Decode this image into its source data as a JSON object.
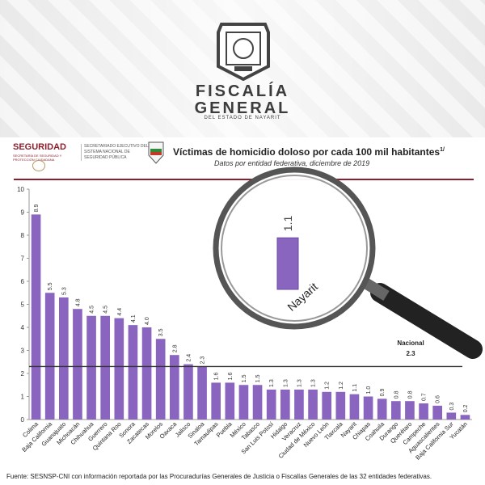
{
  "header": {
    "org_line1": "FISCALÍA",
    "org_line2": "GENERAL",
    "org_line3": "DEL ESTADO DE NAYARIT",
    "logo_left": "SEGURIDAD",
    "logo_left_sub": "SECRETARÍA DE SEGURIDAD Y PROTECCIÓN CIUDADANA",
    "logo_mid": "SECRETARIADO EJECUTIVO DEL SISTEMA NACIONAL DE SEGURIDAD PÚBLICA"
  },
  "chart_data": {
    "type": "bar",
    "title": "Víctimas de homicidio doloso por cada 100 mil habitantes",
    "title_note": "1/",
    "subtitle": "Datos por entidad federativa, diciembre de 2019",
    "categories": [
      "Colima",
      "Baja California",
      "Guanajuato",
      "Michoacán",
      "Chihuahua",
      "Guerrero",
      "Quintana Roo",
      "Sonora",
      "Zacatecas",
      "Morelos",
      "Oaxaca",
      "Jalisco",
      "Sinaloa",
      "Tamaulipas",
      "Puebla",
      "México",
      "Tabasco",
      "San Luis Potosí",
      "Hidalgo",
      "Veracruz",
      "Ciudad de México",
      "Nuevo León",
      "Tlaxcala",
      "Nayarit",
      "Chiapas",
      "Coahuila",
      "Durango",
      "Querétaro",
      "Campeche",
      "Aguascalientes",
      "Baja California Sur",
      "Yucatán"
    ],
    "values": [
      8.9,
      5.5,
      5.3,
      4.8,
      4.5,
      4.5,
      4.4,
      4.1,
      4.0,
      3.5,
      2.8,
      2.4,
      2.3,
      1.6,
      1.6,
      1.5,
      1.5,
      1.3,
      1.3,
      1.3,
      1.3,
      1.2,
      1.2,
      1.1,
      1.0,
      0.9,
      0.8,
      0.8,
      0.7,
      0.6,
      0.3,
      0.2
    ],
    "value_labels": [
      "8.9",
      "5.5",
      "5.3",
      "4.8",
      "4.5",
      "4.5",
      "4.4",
      "4.1",
      "4.0",
      "3.5",
      "2.8",
      "2.4",
      "2.3",
      "1.6",
      "1.6",
      "1.5",
      "1.5",
      "1.3",
      "1.3",
      "1.3",
      "1.3",
      "1.2",
      "1.2",
      "1.1",
      "1.0",
      "0.9",
      "0.8",
      "0.8",
      "0.7",
      "0.6",
      "0.3",
      "0.2"
    ],
    "yticks": [
      "0",
      "1",
      "2",
      "3",
      "4",
      "5",
      "6",
      "7",
      "8",
      "9",
      "10"
    ],
    "ylim": [
      0,
      10
    ],
    "reference_line": {
      "label": "Nacional",
      "value_label": "2.3",
      "value": 2.3
    },
    "highlight": {
      "category": "Nayarit",
      "value_label": "1.1"
    },
    "bar_color": "#8a65c0",
    "xlabel": "",
    "ylabel": "",
    "grid": false
  },
  "footer": {
    "source": "Fuente: SESNSP-CNI con información reportada por las Procuradurías Generales de Justicia o Fiscalías Generales de las 32 entidades federativas."
  }
}
